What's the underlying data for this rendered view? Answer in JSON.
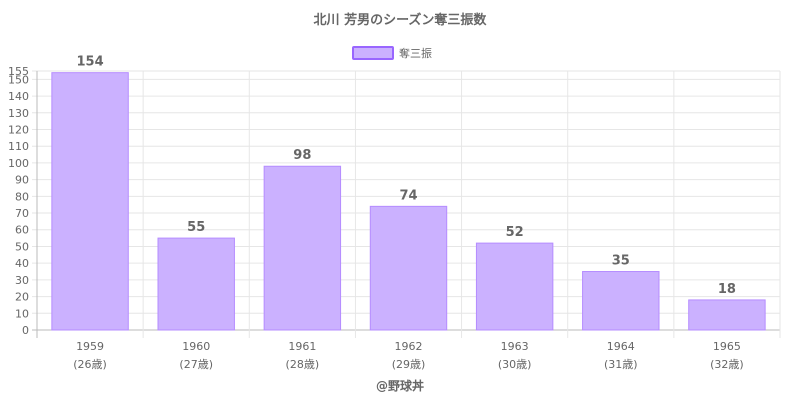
{
  "chart_data": {
    "type": "bar",
    "title": "北川 芳男のシーズン奪三振数",
    "categories": [
      "1959",
      "1960",
      "1961",
      "1962",
      "1963",
      "1964",
      "1965"
    ],
    "ages": [
      "(26歳)",
      "(27歳)",
      "(28歳)",
      "(29歳)",
      "(30歳)",
      "(31歳)",
      "(32歳)"
    ],
    "series": [
      {
        "name": "奪三振",
        "values": [
          154,
          55,
          98,
          74,
          52,
          35,
          18
        ]
      }
    ],
    "ylim": [
      0,
      155
    ],
    "yticks": [
      0,
      10,
      20,
      30,
      40,
      50,
      60,
      70,
      80,
      90,
      100,
      110,
      120,
      130,
      140,
      150,
      155
    ],
    "grid": true,
    "legend": "top-center",
    "colors": {
      "bar_fill": "#cbb1ff",
      "bar_stroke": "#b58cff",
      "legend_stroke": "#9966ff"
    },
    "credit": "@野球丼"
  }
}
